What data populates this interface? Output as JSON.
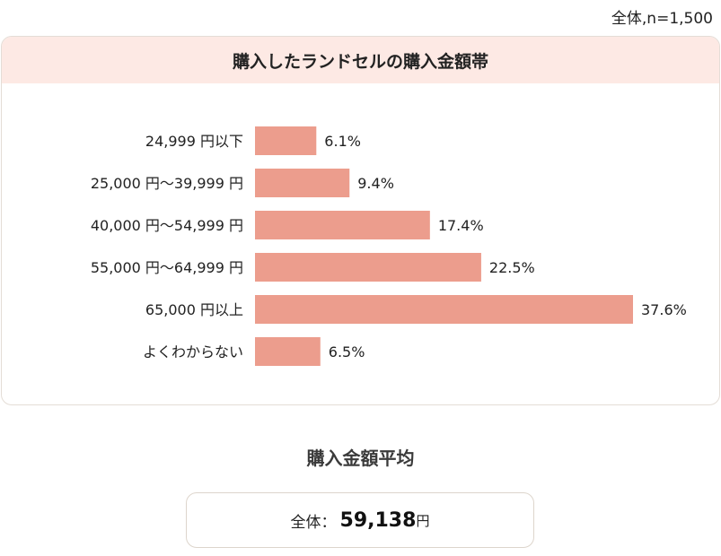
{
  "note": "全体,n=1,500",
  "chart_data": {
    "type": "bar",
    "orientation": "horizontal",
    "title": "購入したランドセルの購入金額帯",
    "categories": [
      "24,999 円以下",
      "25,000 円〜39,999 円",
      "40,000 円〜54,999 円",
      "55,000 円〜64,999 円",
      "65,000 円以上",
      "よくわからない"
    ],
    "values": [
      6.1,
      9.4,
      17.4,
      22.5,
      37.6,
      6.5
    ],
    "value_labels": [
      "6.1%",
      "9.4%",
      "17.4%",
      "22.5%",
      "37.6%",
      "6.5%"
    ],
    "xlim": [
      0,
      37.6
    ],
    "xlabel": "",
    "ylabel": "",
    "grid": false,
    "legend": "none",
    "bar_color": "#ec9d8d"
  },
  "average": {
    "title": "購入金額平均",
    "label": "全体：",
    "value": "59,138",
    "unit": "円"
  }
}
